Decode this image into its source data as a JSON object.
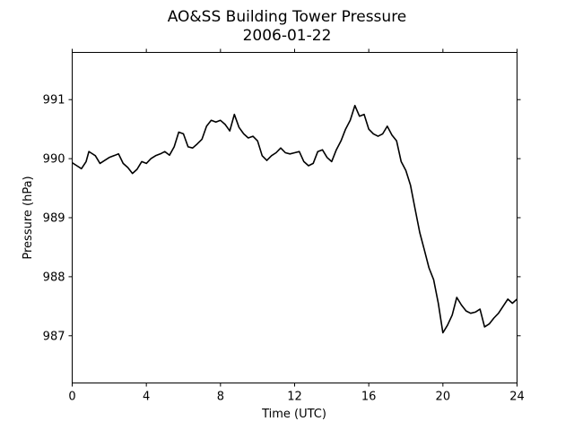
{
  "chart_data": {
    "type": "line",
    "title": "AO&SS Building Tower Pressure",
    "subtitle": "2006-01-22",
    "xlabel": "Time (UTC)",
    "ylabel": "Pressure (hPa)",
    "xlim": [
      0,
      24
    ],
    "ylim": [
      986.2,
      991.8
    ],
    "xticks": [
      0,
      4,
      8,
      12,
      16,
      20,
      24
    ],
    "yticks": [
      987,
      988,
      989,
      990,
      991
    ],
    "grid": false,
    "legend": "none",
    "line_color": "#000000",
    "series": [
      {
        "x": [
          0,
          0.25,
          0.5,
          0.75,
          0.9,
          1.0,
          1.25,
          1.5,
          1.75,
          2.0,
          2.25,
          2.5,
          2.75,
          3.0,
          3.25,
          3.5,
          3.75,
          4.0,
          4.25,
          4.5,
          4.75,
          5.0,
          5.25,
          5.5,
          5.75,
          6.0,
          6.25,
          6.5,
          6.75,
          7.0,
          7.25,
          7.5,
          7.75,
          8.0,
          8.25,
          8.5,
          8.75,
          9.0,
          9.25,
          9.5,
          9.75,
          10.0,
          10.25,
          10.5,
          10.75,
          11.0,
          11.25,
          11.5,
          11.75,
          12.0,
          12.25,
          12.5,
          12.75,
          13.0,
          13.25,
          13.5,
          13.75,
          14.0,
          14.25,
          14.5,
          14.75,
          15.0,
          15.25,
          15.5,
          15.75,
          16.0,
          16.25,
          16.5,
          16.75,
          17.0,
          17.25,
          17.5,
          17.75,
          18.0,
          18.25,
          18.5,
          18.75,
          19.0,
          19.25,
          19.5,
          19.75,
          20.0,
          20.25,
          20.5,
          20.75,
          21.0,
          21.25,
          21.5,
          21.75,
          22.0,
          22.25,
          22.5,
          22.75,
          23.0,
          23.25,
          23.5,
          23.75,
          24.0
        ],
        "values": [
          989.93,
          989.88,
          989.83,
          989.95,
          990.12,
          990.1,
          990.05,
          989.92,
          989.97,
          990.02,
          990.05,
          990.08,
          989.92,
          989.85,
          989.75,
          989.82,
          989.95,
          989.92,
          990.0,
          990.05,
          990.08,
          990.12,
          990.06,
          990.2,
          990.45,
          990.42,
          990.2,
          990.18,
          990.25,
          990.33,
          990.55,
          990.65,
          990.62,
          990.65,
          990.58,
          990.47,
          990.75,
          990.53,
          990.42,
          990.35,
          990.38,
          990.3,
          990.05,
          989.97,
          990.05,
          990.1,
          990.18,
          990.1,
          990.08,
          990.1,
          990.12,
          989.95,
          989.88,
          989.92,
          990.12,
          990.15,
          990.02,
          989.95,
          990.15,
          990.3,
          990.5,
          990.65,
          990.9,
          990.72,
          990.75,
          990.5,
          990.42,
          990.38,
          990.42,
          990.55,
          990.4,
          990.3,
          989.95,
          989.8,
          989.55,
          989.15,
          988.75,
          988.45,
          988.15,
          987.95,
          987.55,
          987.05,
          987.18,
          987.35,
          987.65,
          987.52,
          987.42,
          987.38,
          987.4,
          987.45,
          987.15,
          987.2,
          987.3,
          987.38,
          987.5,
          987.62,
          987.55,
          987.62
        ]
      }
    ]
  }
}
